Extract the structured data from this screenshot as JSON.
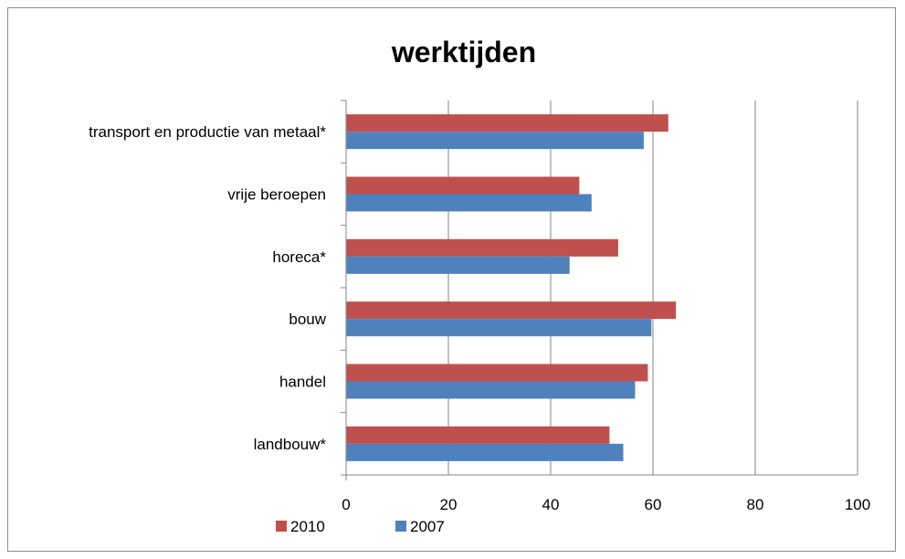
{
  "chart_data": {
    "type": "bar",
    "orientation": "horizontal",
    "title": "werktijden",
    "categories": [
      "landbouw*",
      "handel",
      "bouw",
      "horeca*",
      "vrije beroepen",
      "transport en productie van metaal*"
    ],
    "series": [
      {
        "name": "2010",
        "color": "#c0504d",
        "values": [
          51.5,
          59,
          64.5,
          53.2,
          45.6,
          63
        ]
      },
      {
        "name": "2007",
        "color": "#4f81bd",
        "values": [
          54.2,
          56.5,
          59.7,
          43.7,
          48,
          58.2
        ]
      }
    ],
    "xlim": [
      0,
      100
    ],
    "xticks": [
      0,
      20,
      40,
      60,
      80,
      100
    ],
    "grid": true,
    "legend_position": "bottom-left"
  }
}
